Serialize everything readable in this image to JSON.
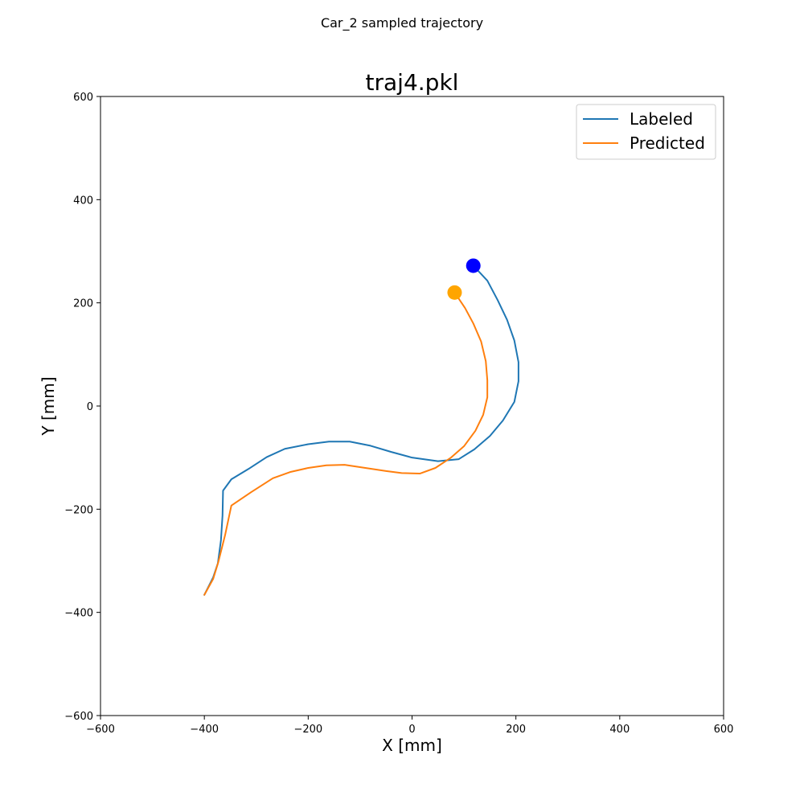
{
  "figure": {
    "suptitle": "Car_2 sampled trajectory"
  },
  "chart_data": {
    "type": "line",
    "title": "traj4.pkl",
    "xlabel": "X [mm]",
    "ylabel": "Y [mm]",
    "xlim": [
      -600,
      600
    ],
    "ylim": [
      -600,
      600
    ],
    "xticks": [
      -600,
      -400,
      -200,
      0,
      200,
      400,
      600
    ],
    "yticks": [
      -600,
      -400,
      -200,
      0,
      200,
      400,
      600
    ],
    "xtick_labels": [
      "−600",
      "−400",
      "−200",
      "0",
      "200",
      "400",
      "600"
    ],
    "ytick_labels": [
      "−600",
      "−400",
      "−200",
      "0",
      "200",
      "400",
      "600"
    ],
    "grid": false,
    "legend_position": "upper right",
    "series": [
      {
        "name": "Labeled",
        "color": "#1f77b4",
        "points": [
          [
            -400,
            -366
          ],
          [
            -390,
            -346
          ],
          [
            -383,
            -332
          ],
          [
            -374,
            -305
          ],
          [
            -368,
            -260
          ],
          [
            -365,
            -212
          ],
          [
            -364,
            -164
          ],
          [
            -348,
            -142
          ],
          [
            -315,
            -122
          ],
          [
            -280,
            -99
          ],
          [
            -245,
            -83
          ],
          [
            -200,
            -74
          ],
          [
            -160,
            -69
          ],
          [
            -120,
            -69
          ],
          [
            -80,
            -77
          ],
          [
            -40,
            -89
          ],
          [
            0,
            -100
          ],
          [
            50,
            -107
          ],
          [
            90,
            -103
          ],
          [
            120,
            -84
          ],
          [
            150,
            -58
          ],
          [
            175,
            -28
          ],
          [
            197,
            8
          ],
          [
            205,
            48
          ],
          [
            205,
            85
          ],
          [
            197,
            127
          ],
          [
            183,
            167
          ],
          [
            165,
            205
          ],
          [
            145,
            243
          ],
          [
            118,
            272
          ]
        ],
        "endpoint_color": "#0000ff"
      },
      {
        "name": "Predicted",
        "color": "#ff7f0e",
        "points": [
          [
            -400,
            -366
          ],
          [
            -383,
            -335
          ],
          [
            -373,
            -302
          ],
          [
            -360,
            -250
          ],
          [
            -348,
            -193
          ],
          [
            -310,
            -167
          ],
          [
            -268,
            -140
          ],
          [
            -235,
            -128
          ],
          [
            -200,
            -120
          ],
          [
            -165,
            -115
          ],
          [
            -130,
            -114
          ],
          [
            -90,
            -120
          ],
          [
            -50,
            -126
          ],
          [
            -20,
            -130
          ],
          [
            15,
            -131
          ],
          [
            45,
            -120
          ],
          [
            75,
            -100
          ],
          [
            100,
            -78
          ],
          [
            122,
            -48
          ],
          [
            137,
            -17
          ],
          [
            145,
            17
          ],
          [
            145,
            50
          ],
          [
            142,
            87
          ],
          [
            133,
            125
          ],
          [
            118,
            160
          ],
          [
            102,
            190
          ],
          [
            82,
            220
          ]
        ],
        "endpoint_color": "#ffa500"
      }
    ]
  }
}
